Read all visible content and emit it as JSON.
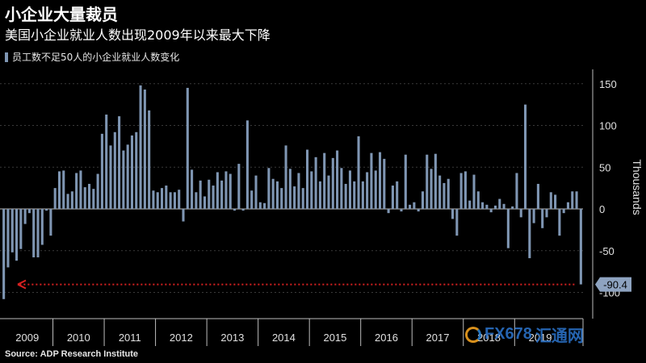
{
  "header": {
    "title": "小企业大量裁员",
    "subtitle": "美国小企业就业人数出现2009年以来最大下降"
  },
  "legend": {
    "label": "员工数不足50人的小企业就业人数变化"
  },
  "source": "Source: ADP Research Institute",
  "watermark": {
    "brand": "FX678",
    "chinese": "汇通网"
  },
  "colors": {
    "bar": "#7f96b3",
    "arrow": "#d62020",
    "background": "#000000",
    "callout": "#8ea3c0"
  },
  "chart_data": {
    "type": "bar",
    "title": "小企业大量裁员",
    "ylabel": "Thousands",
    "ylim": [
      -110,
      150
    ],
    "yticks": [
      150,
      100,
      50,
      0,
      -50,
      -100
    ],
    "ytick_labels": [
      "150",
      "100",
      "50",
      "0",
      "-50",
      "-100"
    ],
    "grid": true,
    "legend_position": "top-left",
    "year_labels": [
      "2009",
      "2010",
      "2011",
      "2012",
      "2013",
      "2014",
      "2015",
      "2016",
      "2017",
      "2018",
      "2019"
    ],
    "callout": "-90.4",
    "series": [
      {
        "name": "员工数不足50人的小企业就业人数变化",
        "values": [
          -108,
          -70,
          -52,
          -62,
          -48,
          -18,
          -5,
          -58,
          -58,
          -43,
          -2,
          -32,
          25,
          45,
          46,
          18,
          21,
          43,
          46,
          26,
          30,
          24,
          42,
          90,
          113,
          76,
          92,
          111,
          70,
          77,
          88,
          92,
          148,
          143,
          118,
          22,
          20,
          25,
          28,
          20,
          20,
          23,
          -15,
          145,
          47,
          20,
          34,
          15,
          35,
          28,
          44,
          34,
          45,
          42,
          -2,
          54,
          -2,
          106,
          22,
          40,
          8,
          7,
          49,
          36,
          33,
          25,
          76,
          48,
          27,
          43,
          25,
          71,
          45,
          62,
          33,
          67,
          40,
          61,
          70,
          49,
          30,
          46,
          33,
          87,
          33,
          44,
          67,
          46,
          68,
          60,
          -5,
          28,
          33,
          -3,
          65,
          5,
          8,
          -3,
          21,
          65,
          48,
          66,
          40,
          31,
          36,
          -12,
          -32,
          43,
          45,
          10,
          41,
          21,
          8,
          5,
          -4,
          4,
          12,
          6,
          -47,
          3,
          43,
          -10,
          125,
          -59,
          -17,
          30,
          -23,
          -10,
          20,
          17,
          -32,
          -5,
          8,
          21,
          21,
          -90.4
        ]
      }
    ]
  }
}
